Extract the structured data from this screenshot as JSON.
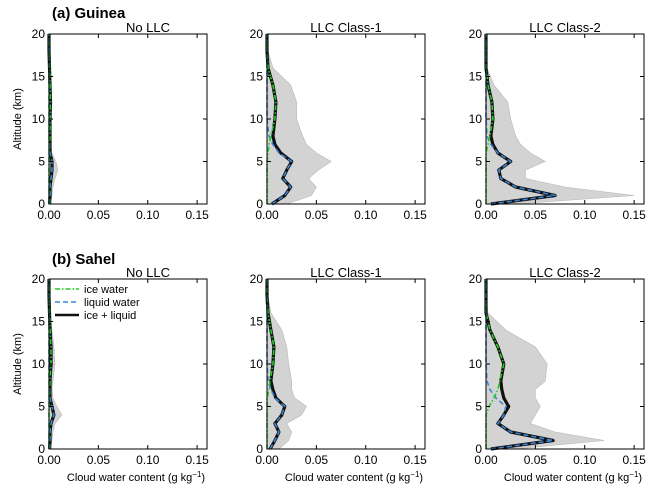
{
  "figure": {
    "rows": [
      {
        "label": "(a) Guinea"
      },
      {
        "label": "(b) Sahel"
      }
    ],
    "panel_titles": [
      "No LLC",
      "LLC Class-1",
      "LLC Class-2"
    ],
    "ylabel": "Altitude (km)",
    "xlabel": "Cloud water content (g kg",
    "xlabel_exp": "−1",
    "xlabel_close": ")",
    "legend": [
      "ice water",
      "liquid water",
      "ice + liquid"
    ],
    "colors": {
      "ice": "#22cc22",
      "liquid": "#3a86d6",
      "total": "#111111",
      "spread": "#d3d3d3"
    }
  },
  "chart_data": [
    {
      "type": "line",
      "row": "(a) Guinea",
      "title": "No LLC",
      "xlabel": "",
      "ylabel": "Altitude (km)",
      "xlim": [
        0,
        0.16
      ],
      "ylim": [
        0,
        20
      ],
      "xticks": [
        "0.00",
        "0.05",
        "0.10",
        "0.15"
      ],
      "yticks": [
        "0",
        "5",
        "10",
        "15",
        "20"
      ],
      "altitude": [
        0,
        1,
        2,
        3,
        4,
        5,
        6,
        7,
        8,
        10,
        12,
        14,
        16,
        18,
        20
      ],
      "series": [
        {
          "name": "ice water",
          "values": [
            0,
            0,
            0,
            0,
            0,
            0,
            0,
            0.0005,
            0.001,
            0.001,
            0.0015,
            0.001,
            0.0005,
            0,
            0
          ]
        },
        {
          "name": "liquid water",
          "values": [
            0.0005,
            0.001,
            0.001,
            0.002,
            0.003,
            0.003,
            0.001,
            0.0005,
            0,
            0,
            0,
            0,
            0,
            0,
            0
          ]
        },
        {
          "name": "ice + liquid",
          "values": [
            0.0005,
            0.001,
            0.001,
            0.002,
            0.003,
            0.003,
            0.001,
            0.001,
            0.001,
            0.001,
            0.0015,
            0.001,
            0.0005,
            0,
            0
          ]
        }
      ],
      "spread_upper": [
        0.002,
        0.003,
        0.004,
        0.006,
        0.009,
        0.007,
        0.003,
        0.002,
        0.002,
        0.002,
        0.002,
        0.002,
        0.001,
        0,
        0
      ]
    },
    {
      "type": "line",
      "row": "(a) Guinea",
      "title": "LLC Class-1",
      "xlabel": "",
      "ylabel": "",
      "xlim": [
        0,
        0.16
      ],
      "ylim": [
        0,
        20
      ],
      "xticks": [
        "0.00",
        "0.05",
        "0.10",
        "0.15"
      ],
      "yticks": [
        "0",
        "5",
        "10",
        "15",
        "20"
      ],
      "altitude": [
        0,
        1,
        2,
        3,
        4,
        5,
        6,
        7,
        8,
        10,
        12,
        14,
        16,
        18,
        20
      ],
      "series": [
        {
          "name": "ice water",
          "values": [
            0,
            0,
            0,
            0,
            0,
            0,
            0.001,
            0.002,
            0.004,
            0.008,
            0.009,
            0.006,
            0.001,
            0,
            0
          ]
        },
        {
          "name": "liquid water",
          "values": [
            0.005,
            0.018,
            0.024,
            0.016,
            0.02,
            0.025,
            0.012,
            0.006,
            0.002,
            0,
            0,
            0,
            0,
            0,
            0
          ]
        },
        {
          "name": "ice + liquid",
          "values": [
            0.005,
            0.018,
            0.024,
            0.016,
            0.02,
            0.025,
            0.014,
            0.008,
            0.006,
            0.008,
            0.009,
            0.006,
            0.001,
            0,
            0
          ]
        }
      ],
      "spread_upper": [
        0.02,
        0.045,
        0.05,
        0.042,
        0.052,
        0.065,
        0.05,
        0.04,
        0.036,
        0.03,
        0.03,
        0.024,
        0.006,
        0.001,
        0
      ]
    },
    {
      "type": "line",
      "row": "(a) Guinea",
      "title": "LLC Class-2",
      "xlabel": "",
      "ylabel": "",
      "xlim": [
        0,
        0.16
      ],
      "ylim": [
        0,
        20
      ],
      "xticks": [
        "0.00",
        "0.05",
        "0.10",
        "0.15"
      ],
      "yticks": [
        "0",
        "5",
        "10",
        "15",
        "20"
      ],
      "altitude": [
        0,
        1,
        2,
        3,
        4,
        5,
        6,
        7,
        8,
        10,
        12,
        14,
        16,
        18,
        20
      ],
      "series": [
        {
          "name": "ice water",
          "values": [
            0,
            0,
            0,
            0,
            0,
            0,
            0,
            0.002,
            0.004,
            0.007,
            0.006,
            0.002,
            0,
            0,
            0
          ]
        },
        {
          "name": "liquid water",
          "values": [
            0.005,
            0.07,
            0.03,
            0.015,
            0.013,
            0.025,
            0.012,
            0.005,
            0.001,
            0,
            0,
            0,
            0,
            0,
            0
          ]
        },
        {
          "name": "ice + liquid",
          "values": [
            0.005,
            0.07,
            0.03,
            0.015,
            0.013,
            0.025,
            0.012,
            0.007,
            0.005,
            0.007,
            0.006,
            0.002,
            0,
            0,
            0
          ]
        }
      ],
      "spread_upper": [
        0.03,
        0.15,
        0.08,
        0.04,
        0.04,
        0.06,
        0.045,
        0.035,
        0.03,
        0.025,
        0.022,
        0.008,
        0.001,
        0,
        0
      ]
    },
    {
      "type": "line",
      "row": "(b) Sahel",
      "title": "No LLC",
      "xlabel": "Cloud water content (g kg−1)",
      "ylabel": "Altitude (km)",
      "xlim": [
        0,
        0.16
      ],
      "ylim": [
        0,
        20
      ],
      "xticks": [
        "0.00",
        "0.05",
        "0.10",
        "0.15"
      ],
      "yticks": [
        "0",
        "5",
        "10",
        "15",
        "20"
      ],
      "altitude": [
        0,
        1,
        2,
        3,
        4,
        5,
        6,
        7,
        8,
        10,
        12,
        14,
        16,
        18,
        20
      ],
      "series": [
        {
          "name": "ice water",
          "values": [
            0,
            0,
            0,
            0,
            0,
            0,
            0,
            0.0005,
            0.001,
            0.002,
            0.002,
            0.001,
            0.0005,
            0,
            0
          ]
        },
        {
          "name": "liquid water",
          "values": [
            0.0005,
            0.001,
            0.001,
            0.002,
            0.005,
            0.003,
            0.001,
            0.0005,
            0,
            0,
            0,
            0,
            0,
            0,
            0
          ]
        },
        {
          "name": "ice + liquid",
          "values": [
            0.0005,
            0.001,
            0.001,
            0.002,
            0.005,
            0.003,
            0.001,
            0.001,
            0.001,
            0.002,
            0.002,
            0.001,
            0.0005,
            0,
            0
          ]
        }
      ],
      "spread_upper": [
        0.002,
        0.003,
        0.004,
        0.006,
        0.013,
        0.008,
        0.004,
        0.003,
        0.004,
        0.006,
        0.005,
        0.003,
        0.001,
        0,
        0
      ]
    },
    {
      "type": "line",
      "row": "(b) Sahel",
      "title": "LLC Class-1",
      "xlabel": "Cloud water content (g kg−1)",
      "ylabel": "",
      "xlim": [
        0,
        0.16
      ],
      "ylim": [
        0,
        20
      ],
      "xticks": [
        "0.00",
        "0.05",
        "0.10",
        "0.15"
      ],
      "yticks": [
        "0",
        "5",
        "10",
        "15",
        "20"
      ],
      "altitude": [
        0,
        1,
        2,
        3,
        4,
        5,
        6,
        7,
        8,
        10,
        12,
        14,
        16,
        18,
        20
      ],
      "series": [
        {
          "name": "ice water",
          "values": [
            0,
            0,
            0,
            0,
            0,
            0,
            0,
            0.002,
            0.003,
            0.006,
            0.007,
            0.004,
            0.001,
            0,
            0
          ]
        },
        {
          "name": "liquid water",
          "values": [
            0.003,
            0.008,
            0.012,
            0.008,
            0.015,
            0.018,
            0.008,
            0.004,
            0.001,
            0,
            0,
            0,
            0,
            0,
            0
          ]
        },
        {
          "name": "ice + liquid",
          "values": [
            0.003,
            0.008,
            0.012,
            0.008,
            0.015,
            0.018,
            0.009,
            0.006,
            0.004,
            0.006,
            0.007,
            0.004,
            0.001,
            0,
            0
          ]
        }
      ],
      "spread_upper": [
        0.012,
        0.022,
        0.025,
        0.02,
        0.035,
        0.04,
        0.028,
        0.025,
        0.025,
        0.022,
        0.02,
        0.015,
        0.004,
        0.001,
        0
      ]
    },
    {
      "type": "line",
      "row": "(b) Sahel",
      "title": "LLC Class-2",
      "xlabel": "Cloud water content (g kg−1)",
      "ylabel": "",
      "xlim": [
        0,
        0.16
      ],
      "ylim": [
        0,
        20
      ],
      "xticks": [
        "0.00",
        "0.05",
        "0.10",
        "0.15"
      ],
      "yticks": [
        "0",
        "5",
        "10",
        "15",
        "20"
      ],
      "altitude": [
        0,
        1,
        2,
        3,
        4,
        5,
        6,
        7,
        8,
        10,
        12,
        14,
        16,
        18,
        20
      ],
      "series": [
        {
          "name": "ice water",
          "values": [
            0,
            0,
            0,
            0,
            0,
            0.003,
            0.008,
            0.012,
            0.014,
            0.018,
            0.012,
            0.004,
            0,
            0,
            0
          ]
        },
        {
          "name": "liquid water",
          "values": [
            0.005,
            0.068,
            0.025,
            0.012,
            0.018,
            0.02,
            0.01,
            0.004,
            0.001,
            0,
            0,
            0,
            0,
            0,
            0
          ]
        },
        {
          "name": "ice + liquid",
          "values": [
            0.005,
            0.068,
            0.025,
            0.012,
            0.018,
            0.023,
            0.018,
            0.016,
            0.015,
            0.018,
            0.012,
            0.004,
            0,
            0,
            0
          ]
        }
      ],
      "spread_upper": [
        0.03,
        0.12,
        0.07,
        0.045,
        0.05,
        0.055,
        0.05,
        0.05,
        0.06,
        0.062,
        0.05,
        0.02,
        0.002,
        0,
        0
      ]
    }
  ]
}
